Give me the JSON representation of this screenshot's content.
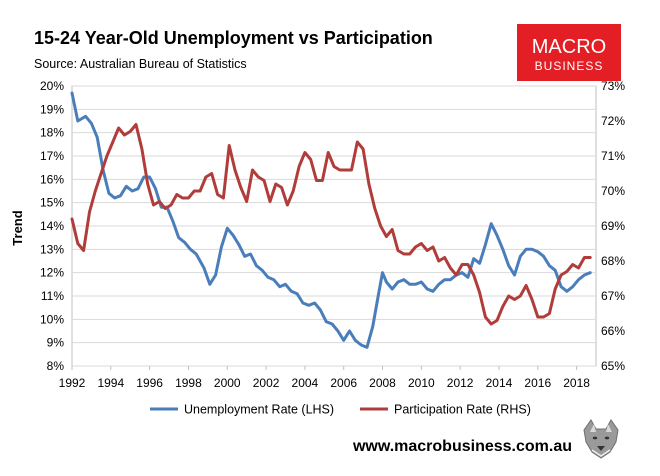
{
  "chart_data": {
    "type": "line",
    "title": "15-24 Year-Old Unemployment vs Participation",
    "subtitle": "Source: Australian Bureau of Statistics",
    "ylabel_left": "Trend",
    "x_ticks": [
      "1992",
      "1994",
      "1996",
      "1998",
      "2000",
      "2002",
      "2004",
      "2006",
      "2008",
      "2010",
      "2012",
      "2014",
      "2016",
      "2018"
    ],
    "xlim": [
      1992,
      2019
    ],
    "ylim_left": [
      8,
      20
    ],
    "ylim_right": [
      65,
      73
    ],
    "y_left_ticks": [
      "8%",
      "9%",
      "10%",
      "11%",
      "12%",
      "13%",
      "14%",
      "15%",
      "16%",
      "17%",
      "18%",
      "19%",
      "20%"
    ],
    "y_right_ticks": [
      "65%",
      "66%",
      "67%",
      "68%",
      "69%",
      "70%",
      "71%",
      "72%",
      "73%"
    ],
    "grid": true,
    "legend_position": "bottom",
    "series": [
      {
        "name": "Unemployment Rate (LHS)",
        "axis": "left",
        "color": "#4a7ebb",
        "x": [
          1992.0,
          1992.3,
          1992.7,
          1993.0,
          1993.3,
          1993.6,
          1993.9,
          1994.2,
          1994.5,
          1994.8,
          1995.1,
          1995.4,
          1995.7,
          1996.0,
          1996.3,
          1996.6,
          1996.9,
          1997.2,
          1997.5,
          1997.8,
          1998.1,
          1998.4,
          1998.8,
          1999.1,
          1999.4,
          1999.7,
          2000.0,
          2000.3,
          2000.6,
          2000.9,
          2001.2,
          2001.5,
          2001.8,
          2002.1,
          2002.4,
          2002.7,
          2003.0,
          2003.3,
          2003.6,
          2003.9,
          2004.2,
          2004.5,
          2004.8,
          2005.1,
          2005.4,
          2005.7,
          2006.0,
          2006.3,
          2006.6,
          2006.9,
          2007.2,
          2007.5,
          2007.8,
          2008.0,
          2008.2,
          2008.5,
          2008.8,
          2009.1,
          2009.4,
          2009.7,
          2010.0,
          2010.3,
          2010.6,
          2010.9,
          2011.2,
          2011.5,
          2011.8,
          2012.1,
          2012.4,
          2012.7,
          2013.0,
          2013.3,
          2013.6,
          2013.9,
          2014.2,
          2014.5,
          2014.8,
          2015.1,
          2015.4,
          2015.7,
          2016.0,
          2016.3,
          2016.6,
          2016.9,
          2017.2,
          2017.5,
          2017.8,
          2018.1,
          2018.4,
          2018.7
        ],
        "values": [
          19.7,
          18.5,
          18.7,
          18.4,
          17.8,
          16.4,
          15.4,
          15.2,
          15.3,
          15.7,
          15.5,
          15.6,
          16.1,
          16.1,
          15.6,
          14.8,
          14.8,
          14.2,
          13.5,
          13.3,
          13.0,
          12.8,
          12.2,
          11.5,
          11.9,
          13.1,
          13.9,
          13.6,
          13.2,
          12.7,
          12.8,
          12.3,
          12.1,
          11.8,
          11.7,
          11.4,
          11.5,
          11.2,
          11.1,
          10.7,
          10.6,
          10.7,
          10.4,
          9.9,
          9.8,
          9.5,
          9.1,
          9.5,
          9.1,
          8.9,
          8.8,
          9.7,
          11.1,
          12.0,
          11.6,
          11.3,
          11.6,
          11.7,
          11.5,
          11.5,
          11.6,
          11.3,
          11.2,
          11.5,
          11.7,
          11.7,
          11.9,
          12.0,
          11.8,
          12.6,
          12.4,
          13.2,
          14.1,
          13.6,
          13.0,
          12.3,
          11.9,
          12.7,
          13.0,
          13.0,
          12.9,
          12.7,
          12.3,
          12.1,
          11.4,
          11.2,
          11.4,
          11.7,
          11.9,
          12.0
        ]
      },
      {
        "name": "Participation Rate (RHS)",
        "axis": "right",
        "color": "#b13d3b",
        "x": [
          1992.0,
          1992.3,
          1992.6,
          1992.9,
          1993.2,
          1993.5,
          1993.8,
          1994.1,
          1994.4,
          1994.7,
          1995.0,
          1995.3,
          1995.6,
          1995.9,
          1996.2,
          1996.5,
          1996.8,
          1997.1,
          1997.4,
          1997.7,
          1998.0,
          1998.3,
          1998.6,
          1998.9,
          1999.2,
          1999.5,
          1999.8,
          2000.1,
          2000.4,
          2000.7,
          2001.0,
          2001.3,
          2001.6,
          2001.9,
          2002.2,
          2002.5,
          2002.8,
          2003.1,
          2003.4,
          2003.7,
          2004.0,
          2004.3,
          2004.6,
          2004.9,
          2005.2,
          2005.5,
          2005.8,
          2006.1,
          2006.4,
          2006.7,
          2007.0,
          2007.3,
          2007.6,
          2007.9,
          2008.2,
          2008.5,
          2008.8,
          2009.1,
          2009.4,
          2009.7,
          2010.0,
          2010.3,
          2010.6,
          2010.9,
          2011.2,
          2011.5,
          2011.8,
          2012.1,
          2012.4,
          2012.7,
          2013.0,
          2013.3,
          2013.6,
          2013.9,
          2014.2,
          2014.5,
          2014.8,
          2015.1,
          2015.4,
          2015.7,
          2016.0,
          2016.3,
          2016.6,
          2016.9,
          2017.2,
          2017.5,
          2017.8,
          2018.1,
          2018.4,
          2018.7
        ],
        "values": [
          69.2,
          68.5,
          68.3,
          69.4,
          70.0,
          70.5,
          71.0,
          71.4,
          71.8,
          71.6,
          71.7,
          71.9,
          71.2,
          70.2,
          69.6,
          69.7,
          69.5,
          69.6,
          69.9,
          69.8,
          69.8,
          70.0,
          70.0,
          70.4,
          70.5,
          69.9,
          69.8,
          71.3,
          70.6,
          70.1,
          69.7,
          70.6,
          70.4,
          70.3,
          69.7,
          70.2,
          70.1,
          69.6,
          70.0,
          70.7,
          71.1,
          70.9,
          70.3,
          70.3,
          71.1,
          70.7,
          70.6,
          70.6,
          70.6,
          71.4,
          71.2,
          70.2,
          69.5,
          69.0,
          68.7,
          68.9,
          68.3,
          68.2,
          68.2,
          68.4,
          68.5,
          68.3,
          68.4,
          68.0,
          68.1,
          67.8,
          67.6,
          67.9,
          67.9,
          67.6,
          67.1,
          66.4,
          66.2,
          66.3,
          66.7,
          67.0,
          66.9,
          67.0,
          67.3,
          66.9,
          66.4,
          66.4,
          66.5,
          67.2,
          67.6,
          67.7,
          67.9,
          67.8,
          68.1,
          68.1
        ]
      }
    ]
  },
  "brand": {
    "logo_line1": "MACRO",
    "logo_line2": "BUSINESS",
    "logo_color": "#e31e24",
    "website": "www.macrobusiness.com.au",
    "mascot_icon": "wolf-icon"
  }
}
